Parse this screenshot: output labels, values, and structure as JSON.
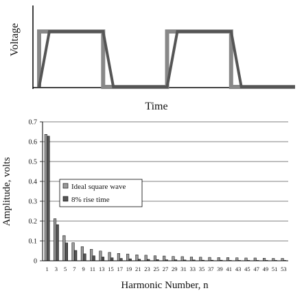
{
  "chart_data": [
    {
      "type": "line",
      "xlabel": "Time",
      "ylabel": "Voltage",
      "series": [
        {
          "name": "Ideal square wave",
          "color": "#888888",
          "points": [
            [
              0,
              0
            ],
            [
              0,
              1
            ],
            [
              1,
              1
            ],
            [
              1,
              0
            ],
            [
              2,
              0
            ],
            [
              2,
              1
            ],
            [
              3,
              1
            ],
            [
              3,
              0
            ],
            [
              4,
              0
            ]
          ]
        },
        {
          "name": "8% rise time",
          "color": "#555555",
          "points": [
            [
              0,
              0
            ],
            [
              0.16,
              1
            ],
            [
              1,
              1
            ],
            [
              1.16,
              0
            ],
            [
              2,
              0
            ],
            [
              2.16,
              1
            ],
            [
              3,
              1
            ],
            [
              3.16,
              0
            ],
            [
              4,
              0
            ]
          ]
        }
      ]
    },
    {
      "type": "bar",
      "xlabel": "Harmonic Number, n",
      "ylabel": "Amplitude, volts",
      "ylim": [
        0,
        0.7
      ],
      "yticks": [
        "0",
        "0.1",
        "0.2",
        "0.3",
        "0.4",
        "0.5",
        "0.6",
        "0.7"
      ],
      "grid": true,
      "legend_position": "middle-left",
      "categories": [
        "1",
        "3",
        "5",
        "7",
        "9",
        "11",
        "13",
        "15",
        "17",
        "19",
        "21",
        "23",
        "25",
        "27",
        "29",
        "31",
        "33",
        "35",
        "37",
        "39",
        "41",
        "43",
        "45",
        "47",
        "49",
        "51",
        "53"
      ],
      "series": [
        {
          "name": "Ideal square wave",
          "color": "#999999",
          "values": [
            0.637,
            0.212,
            0.127,
            0.091,
            0.071,
            0.058,
            0.049,
            0.042,
            0.037,
            0.034,
            0.03,
            0.028,
            0.025,
            0.024,
            0.022,
            0.021,
            0.019,
            0.018,
            0.017,
            0.016,
            0.016,
            0.015,
            0.014,
            0.014,
            0.013,
            0.012,
            0.012
          ]
        },
        {
          "name": "8% rise time",
          "color": "#555555",
          "values": [
            0.628,
            0.182,
            0.09,
            0.052,
            0.035,
            0.025,
            0.019,
            0.015,
            0.012,
            0.01,
            0.008,
            0.007,
            0.006,
            0.005,
            0.005,
            0.004,
            0.004,
            0.003,
            0.003,
            0.003,
            0.002,
            0.002,
            0.002,
            0.002,
            0.002,
            0.002,
            0.002
          ]
        }
      ]
    }
  ]
}
